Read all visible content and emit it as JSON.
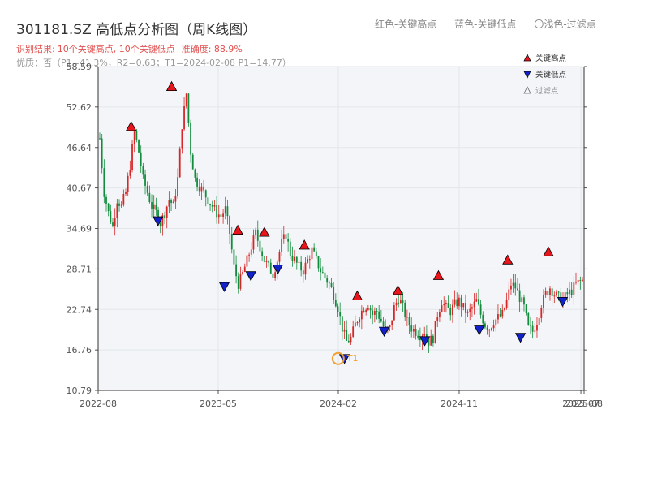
{
  "header": {
    "title": "301181.SZ 高低点分析图（周K线图）",
    "legend_text": [
      "红色-关键高点",
      "蓝色-关键低点",
      "〇浅色-过滤点"
    ],
    "result_prefix": "识别结果:",
    "result_counts": "10个关键高点, 10个关键低点",
    "accuracy": "准确度: 88.9%",
    "quality": "优质：否（P1=41.3%，R2=0.63；T1=2024-02-08 P1=14.77）"
  },
  "colors": {
    "up": "#d62728",
    "down": "#118c3c",
    "high_marker": "#e8161c",
    "low_marker": "#1122cc",
    "t1_marker": "#f0a030",
    "plot_bg": "#f3f5f8"
  },
  "chart_data": {
    "type": "candlestick",
    "xlabel": "",
    "ylabel": "",
    "ylim": [
      10.79,
      58.59
    ],
    "yticks": [
      "58.59",
      "52.62",
      "46.64",
      "40.67",
      "34.69",
      "28.71",
      "22.74",
      "16.76",
      "10.79"
    ],
    "xticks": [
      "2022-08",
      "2023-05",
      "2024-02",
      "2024-11",
      "2025-07",
      "2025-08"
    ],
    "grid": true,
    "legend": {
      "position": "top-right",
      "entries": [
        {
          "label": "关键高点",
          "marker": "triangle-up",
          "color": "#e8161c"
        },
        {
          "label": "关键低点",
          "marker": "triangle-down",
          "color": "#1122cc"
        },
        {
          "label": "过滤点",
          "marker": "triangle-up-outline",
          "color": "#666666"
        }
      ]
    },
    "price_path": [
      [
        0,
        48
      ],
      [
        2,
        40
      ],
      [
        4,
        37
      ],
      [
        6,
        35
      ],
      [
        8,
        39
      ],
      [
        10,
        38
      ],
      [
        12,
        40
      ],
      [
        14,
        44
      ],
      [
        16,
        49
      ],
      [
        18,
        46
      ],
      [
        20,
        42
      ],
      [
        22,
        40
      ],
      [
        24,
        38
      ],
      [
        26,
        37
      ],
      [
        28,
        35.5
      ],
      [
        30,
        37
      ],
      [
        32,
        39
      ],
      [
        34,
        38
      ],
      [
        36,
        42
      ],
      [
        38,
        50
      ],
      [
        40,
        54.6
      ],
      [
        42,
        46
      ],
      [
        44,
        42
      ],
      [
        46,
        41
      ],
      [
        48,
        40
      ],
      [
        50,
        39
      ],
      [
        52,
        38
      ],
      [
        54,
        37
      ],
      [
        56,
        36.5
      ],
      [
        58,
        37.5
      ],
      [
        60,
        34
      ],
      [
        62,
        29
      ],
      [
        64,
        26.5
      ],
      [
        66,
        28
      ],
      [
        68,
        30
      ],
      [
        70,
        32
      ],
      [
        72,
        34
      ],
      [
        74,
        32
      ],
      [
        76,
        30
      ],
      [
        78,
        29
      ],
      [
        80,
        28
      ],
      [
        82,
        30
      ],
      [
        84,
        32.5
      ],
      [
        86,
        33.8
      ],
      [
        88,
        31
      ],
      [
        90,
        30
      ],
      [
        92,
        29
      ],
      [
        94,
        28.5
      ],
      [
        96,
        30
      ],
      [
        98,
        31.5
      ],
      [
        100,
        30
      ],
      [
        102,
        28.5
      ],
      [
        104,
        27.5
      ],
      [
        106,
        26.5
      ],
      [
        108,
        25
      ],
      [
        110,
        23
      ],
      [
        112,
        20
      ],
      [
        114,
        18
      ],
      [
        116,
        18.5
      ],
      [
        118,
        20.5
      ],
      [
        120,
        22
      ],
      [
        122,
        23
      ],
      [
        124,
        23.5
      ],
      [
        126,
        22
      ],
      [
        128,
        22.5
      ],
      [
        130,
        21
      ],
      [
        132,
        19.5
      ],
      [
        134,
        20
      ],
      [
        136,
        23
      ],
      [
        138,
        24.5
      ],
      [
        140,
        23
      ],
      [
        142,
        21
      ],
      [
        144,
        20
      ],
      [
        146,
        19.5
      ],
      [
        148,
        19
      ],
      [
        150,
        19.5
      ],
      [
        152,
        18
      ],
      [
        154,
        18.5
      ],
      [
        156,
        22
      ],
      [
        158,
        24
      ],
      [
        160,
        23
      ],
      [
        162,
        22.5
      ],
      [
        164,
        23.5
      ],
      [
        166,
        24
      ],
      [
        168,
        23
      ],
      [
        170,
        22
      ],
      [
        172,
        23
      ],
      [
        174,
        24
      ],
      [
        176,
        22
      ],
      [
        178,
        20.5
      ],
      [
        180,
        20
      ],
      [
        182,
        21
      ],
      [
        184,
        21.5
      ],
      [
        186,
        22
      ],
      [
        188,
        24
      ],
      [
        190,
        26.5
      ],
      [
        192,
        26
      ],
      [
        194,
        24.5
      ],
      [
        196,
        23
      ],
      [
        198,
        20
      ],
      [
        200,
        19.5
      ],
      [
        202,
        21
      ],
      [
        204,
        23.5
      ],
      [
        206,
        25
      ],
      [
        208,
        26
      ],
      [
        210,
        25
      ],
      [
        212,
        24.5
      ],
      [
        214,
        24.2
      ],
      [
        216,
        25
      ],
      [
        218,
        25.5
      ],
      [
        220,
        26.5
      ],
      [
        223,
        27
      ]
    ],
    "key_highs": [
      {
        "date": "2022-10",
        "price": 48.9
      },
      {
        "date": "2023-01",
        "price": 54.8
      },
      {
        "date": "2023-06",
        "price": 33.6
      },
      {
        "date": "2023-08",
        "price": 33.3
      },
      {
        "date": "2023-11",
        "price": 31.4
      },
      {
        "date": "2024-03",
        "price": 23.9
      },
      {
        "date": "2024-06",
        "price": 24.7
      },
      {
        "date": "2024-09",
        "price": 26.9
      },
      {
        "date": "2025-02",
        "price": 29.2
      },
      {
        "date": "2025-05",
        "price": 30.4
      }
    ],
    "key_lows": [
      {
        "date": "2022-12",
        "price": 35.1
      },
      {
        "date": "2023-05",
        "price": 25.4
      },
      {
        "date": "2023-07",
        "price": 27.0
      },
      {
        "date": "2023-09",
        "price": 28.0
      },
      {
        "date": "2024-02",
        "price": 14.77
      },
      {
        "date": "2024-05",
        "price": 18.8
      },
      {
        "date": "2024-08",
        "price": 17.4
      },
      {
        "date": "2024-12",
        "price": 19.0
      },
      {
        "date": "2025-03",
        "price": 17.9
      },
      {
        "date": "2025-06",
        "price": 23.2
      }
    ],
    "annotations": [
      {
        "label": "T1",
        "date": "2024-02-08",
        "price": 14.77
      }
    ]
  }
}
